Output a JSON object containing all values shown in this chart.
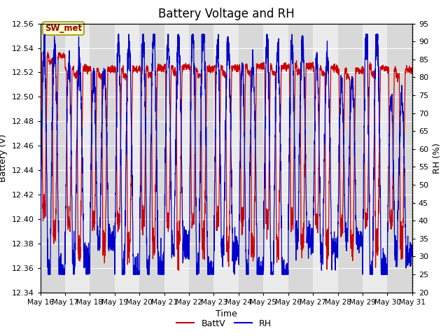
{
  "title": "Battery Voltage and RH",
  "xlabel": "Time",
  "ylabel_left": "Battery (V)",
  "ylabel_right": "RH (%)",
  "station_label": "SW_met",
  "ylim_left": [
    12.34,
    12.56
  ],
  "ylim_right": [
    20,
    95
  ],
  "yticks_left": [
    12.34,
    12.36,
    12.38,
    12.4,
    12.42,
    12.44,
    12.46,
    12.48,
    12.5,
    12.52,
    12.54,
    12.56
  ],
  "yticks_right": [
    20,
    25,
    30,
    35,
    40,
    45,
    50,
    55,
    60,
    65,
    70,
    75,
    80,
    85,
    90,
    95
  ],
  "xtick_labels": [
    "May 16",
    "May 17",
    "May 18",
    "May 19",
    "May 20",
    "May 21",
    "May 22",
    "May 23",
    "May 24",
    "May 25",
    "May 26",
    "May 27",
    "May 28",
    "May 29",
    "May 30",
    "May 31"
  ],
  "batt_color": "#cc0000",
  "rh_color": "#0000cc",
  "legend_batt": "BattV",
  "legend_rh": "RH",
  "bg_dark": "#d8d8d8",
  "bg_light": "#ebebeb",
  "title_fontsize": 12,
  "axis_fontsize": 9,
  "tick_fontsize": 8
}
